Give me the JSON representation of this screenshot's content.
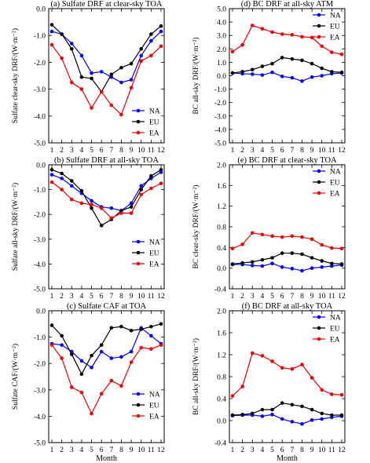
{
  "chart_data": [
    {
      "type": "line",
      "title": "(a) Sulfate DRF at clear-sky TOA",
      "xlabel": "",
      "ylabel": "Sulfate clear-sky DRF/(W·m⁻²)",
      "x": [
        1,
        2,
        3,
        4,
        5,
        6,
        7,
        8,
        9,
        10,
        11,
        12
      ],
      "xticks": [
        "1",
        "2",
        "3",
        "4",
        "5",
        "6",
        "7",
        "8",
        "9",
        "10",
        "11",
        "12"
      ],
      "ylim": [
        -5.0,
        0.0
      ],
      "yticks": [
        "0.0",
        "-1.0",
        "-2.0",
        "-3.0",
        "-4.0",
        "-5.0"
      ],
      "ytick_values": [
        0,
        -1,
        -2,
        -3,
        -4,
        -5
      ],
      "legend": "middle-right",
      "series": [
        {
          "name": "NA",
          "color": "#0000ff",
          "values": [
            -0.85,
            -0.95,
            -1.3,
            -1.75,
            -2.4,
            -2.35,
            -2.55,
            -2.75,
            -2.65,
            -1.75,
            -1.2,
            -0.85
          ]
        },
        {
          "name": "EU",
          "color": "#000000",
          "values": [
            -0.6,
            -0.95,
            -1.5,
            -2.55,
            -2.6,
            -3.1,
            -2.45,
            -2.2,
            -2.05,
            -1.5,
            -0.95,
            -0.65
          ]
        },
        {
          "name": "EA",
          "color": "#ee0000",
          "values": [
            -1.35,
            -1.85,
            -2.75,
            -3.0,
            -3.7,
            -3.1,
            -3.6,
            -3.95,
            -2.95,
            -1.95,
            -1.75,
            -1.4
          ]
        }
      ]
    },
    {
      "type": "line",
      "title": "(b) Sulfate DRF at all-sky TOA",
      "xlabel": "",
      "ylabel": "Sulfate all-sky DRF/(W·m⁻²)",
      "x": [
        1,
        2,
        3,
        4,
        5,
        6,
        7,
        8,
        9,
        10,
        11,
        12
      ],
      "xticks": [
        "1",
        "2",
        "3",
        "4",
        "5",
        "6",
        "7",
        "8",
        "9",
        "10",
        "11",
        "12"
      ],
      "ylim": [
        -5.0,
        0.0
      ],
      "yticks": [
        "0.0",
        "-1.0",
        "-2.0",
        "-3.0",
        "-4.0",
        "-5.0"
      ],
      "ytick_values": [
        0,
        -1,
        -2,
        -3,
        -4,
        -5
      ],
      "legend": "bottom-right",
      "series": [
        {
          "name": "NA",
          "color": "#0000ff",
          "values": [
            -0.4,
            -0.55,
            -0.85,
            -1.15,
            -1.45,
            -1.7,
            -1.75,
            -1.85,
            -1.55,
            -0.85,
            -0.55,
            -0.3
          ]
        },
        {
          "name": "EU",
          "color": "#000000",
          "values": [
            -0.2,
            -0.35,
            -0.65,
            -1.05,
            -1.75,
            -2.45,
            -2.2,
            -1.85,
            -1.7,
            -1.0,
            -0.45,
            -0.2
          ]
        },
        {
          "name": "EA",
          "color": "#ee0000",
          "values": [
            -0.7,
            -1.0,
            -1.4,
            -1.55,
            -1.6,
            -1.75,
            -2.15,
            -1.95,
            -1.95,
            -1.2,
            -0.95,
            -0.75
          ]
        }
      ]
    },
    {
      "type": "line",
      "title": "(c) Sulfate CAF at TOA",
      "xlabel": "Month",
      "ylabel": "Sulfate CAF/(W·m⁻²)",
      "x": [
        1,
        2,
        3,
        4,
        5,
        6,
        7,
        8,
        9,
        10,
        11,
        12
      ],
      "xticks": [
        "1",
        "2",
        "3",
        "4",
        "5",
        "6",
        "7",
        "8",
        "9",
        "10",
        "11",
        "12"
      ],
      "ylim": [
        -5.0,
        0.0
      ],
      "yticks": [
        "0.0",
        "-1.0",
        "-2.0",
        "-3.0",
        "-4.0",
        "-5.0"
      ],
      "ytick_values": [
        0,
        -1,
        -2,
        -3,
        -4,
        -5
      ],
      "legend": "bottom-right",
      "series": [
        {
          "name": "NA",
          "color": "#0000ff",
          "values": [
            -1.25,
            -1.3,
            -1.55,
            -1.9,
            -2.15,
            -1.55,
            -1.8,
            -1.75,
            -1.55,
            -0.65,
            -0.95,
            -1.25
          ]
        },
        {
          "name": "EU",
          "color": "#000000",
          "values": [
            -0.55,
            -0.95,
            -1.65,
            -2.4,
            -1.7,
            -1.3,
            -0.65,
            -0.6,
            -0.75,
            -0.7,
            -0.6,
            -0.5
          ]
        },
        {
          "name": "EA",
          "color": "#ee0000",
          "values": [
            -1.3,
            -1.8,
            -2.9,
            -3.1,
            -3.9,
            -3.15,
            -2.65,
            -2.85,
            -1.95,
            -1.4,
            -1.45,
            -1.3
          ]
        }
      ]
    },
    {
      "type": "line",
      "title": "(d) BC DRF at all-sky ATM",
      "xlabel": "",
      "ylabel": "BC all-sky DRF/(W·m⁻²)",
      "x": [
        1,
        2,
        3,
        4,
        5,
        6,
        7,
        8,
        9,
        10,
        11,
        12
      ],
      "xticks": [
        "1",
        "2",
        "3",
        "4",
        "5",
        "6",
        "7",
        "8",
        "9",
        "10",
        "11",
        "12"
      ],
      "ylim": [
        -5.0,
        5.0
      ],
      "yticks": [
        "5.0",
        "4.0",
        "3.0",
        "2.0",
        "1.0",
        "0.0",
        "-1.0",
        "-2.0",
        "-3.0",
        "-4.0",
        "-5.0"
      ],
      "ytick_values": [
        5,
        4,
        3,
        2,
        1,
        0,
        -1,
        -2,
        -3,
        -4,
        -5
      ],
      "legend": "top-right",
      "series": [
        {
          "name": "NA",
          "color": "#0000ff",
          "values": [
            0.2,
            0.15,
            0.12,
            0.05,
            0.25,
            -0.05,
            -0.15,
            -0.4,
            -0.1,
            0.0,
            0.15,
            0.2
          ]
        },
        {
          "name": "EU",
          "color": "#000000",
          "values": [
            0.2,
            0.3,
            0.45,
            0.7,
            0.9,
            1.35,
            1.25,
            1.15,
            0.9,
            0.55,
            0.3,
            0.25
          ]
        },
        {
          "name": "EA",
          "color": "#ee0000",
          "values": [
            1.8,
            2.3,
            3.75,
            3.5,
            3.25,
            3.1,
            3.05,
            2.9,
            2.85,
            2.2,
            1.75,
            1.6
          ]
        }
      ]
    },
    {
      "type": "line",
      "title": "(e) BC DRF at clear-sky TOA",
      "xlabel": "",
      "ylabel": "BC clear-sky DRF/(W·m⁻²)",
      "x": [
        1,
        2,
        3,
        4,
        5,
        6,
        7,
        8,
        9,
        10,
        11,
        12
      ],
      "xticks": [
        "1",
        "2",
        "3",
        "4",
        "5",
        "6",
        "7",
        "8",
        "9",
        "10",
        "11",
        "12"
      ],
      "ylim": [
        -0.4,
        2.0
      ],
      "yticks": [
        "2.0",
        "1.6",
        "1.2",
        "0.8",
        "0.4",
        "0.0",
        "-0.4"
      ],
      "ytick_values": [
        2.0,
        1.6,
        1.2,
        0.8,
        0.4,
        0.0,
        -0.4
      ],
      "legend": "top-right",
      "series": [
        {
          "name": "NA",
          "color": "#0000ff",
          "values": [
            0.07,
            0.07,
            0.05,
            0.04,
            0.09,
            0.02,
            -0.01,
            -0.05,
            0.0,
            0.02,
            0.04,
            0.06
          ]
        },
        {
          "name": "EU",
          "color": "#000000",
          "values": [
            0.08,
            0.1,
            0.12,
            0.16,
            0.2,
            0.29,
            0.29,
            0.27,
            0.2,
            0.14,
            0.09,
            0.08
          ]
        },
        {
          "name": "EA",
          "color": "#ee0000",
          "values": [
            0.38,
            0.46,
            0.68,
            0.65,
            0.62,
            0.6,
            0.62,
            0.6,
            0.56,
            0.45,
            0.39,
            0.38
          ]
        }
      ]
    },
    {
      "type": "line",
      "title": "(f) BC DRF at all-sky TOA",
      "xlabel": "Month",
      "ylabel": "BC all-sky DRF/(W·m⁻²)",
      "x": [
        1,
        2,
        3,
        4,
        5,
        6,
        7,
        8,
        9,
        10,
        11,
        12
      ],
      "xticks": [
        "1",
        "2",
        "3",
        "4",
        "5",
        "6",
        "7",
        "8",
        "9",
        "10",
        "11",
        "12"
      ],
      "ylim": [
        -0.4,
        2.0
      ],
      "yticks": [
        "2.0",
        "1.6",
        "1.2",
        "0.8",
        "0.4",
        "0.0",
        "-0.4"
      ],
      "ytick_values": [
        2.0,
        1.6,
        1.2,
        0.8,
        0.4,
        0.0,
        -0.4
      ],
      "legend": "top-right",
      "series": [
        {
          "name": "NA",
          "color": "#0000ff",
          "values": [
            0.09,
            0.1,
            0.1,
            0.08,
            0.11,
            0.03,
            -0.02,
            -0.06,
            0.01,
            0.03,
            0.06,
            0.08
          ]
        },
        {
          "name": "EU",
          "color": "#000000",
          "values": [
            0.1,
            0.11,
            0.13,
            0.2,
            0.2,
            0.32,
            0.29,
            0.26,
            0.2,
            0.13,
            0.1,
            0.1
          ]
        },
        {
          "name": "EA",
          "color": "#ee0000",
          "values": [
            0.45,
            0.62,
            1.23,
            1.18,
            1.08,
            0.96,
            0.94,
            1.02,
            0.78,
            0.56,
            0.48,
            0.47
          ]
        }
      ]
    }
  ]
}
